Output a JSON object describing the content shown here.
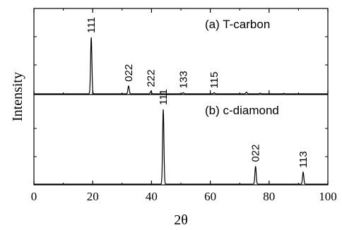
{
  "chart_data": {
    "type": "line",
    "xlabel": "2θ",
    "ylabel": "Intensity",
    "xlim": [
      0,
      100
    ],
    "x_ticks": [
      0,
      20,
      40,
      60,
      80,
      100
    ],
    "x_tick_labels": [
      "0",
      "20",
      "40",
      "60",
      "80",
      "100"
    ],
    "grid": false,
    "panels": [
      {
        "name": "(a) T-carbon",
        "peaks": [
          {
            "x": 19.5,
            "intensity": 1.0,
            "label": "111"
          },
          {
            "x": 32.2,
            "intensity": 0.14,
            "label": "022"
          },
          {
            "x": 39.8,
            "intensity": 0.045,
            "label": "222"
          },
          {
            "x": 50.8,
            "intensity": 0.02,
            "label": "133"
          },
          {
            "x": 61.3,
            "intensity": 0.02,
            "label": "115"
          },
          {
            "x": 72.3,
            "intensity": 0.03,
            "label": ""
          },
          {
            "x": 77.0,
            "intensity": 0.012,
            "label": ""
          },
          {
            "x": 85.0,
            "intensity": 0.008,
            "label": ""
          }
        ]
      },
      {
        "name": "(b) c-diamond",
        "peaks": [
          {
            "x": 44.0,
            "intensity": 1.0,
            "label": "111"
          },
          {
            "x": 75.4,
            "intensity": 0.24,
            "label": "022"
          },
          {
            "x": 91.6,
            "intensity": 0.16,
            "label": "113"
          }
        ]
      }
    ]
  }
}
